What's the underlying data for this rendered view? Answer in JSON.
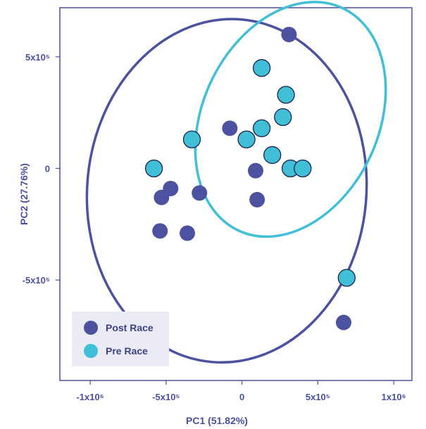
{
  "chart_data": {
    "type": "scatter",
    "title": "",
    "xlabel": "PC1 (51.82%)",
    "ylabel": "PC2 (27.76%)",
    "xlim": [
      -1200000,
      1120000
    ],
    "ylim": [
      -950000,
      720000
    ],
    "x_ticks": [
      {
        "value": -1000000,
        "label": "-1x10⁶"
      },
      {
        "value": -500000,
        "label": "-5x10⁵"
      },
      {
        "value": 0,
        "label": "0"
      },
      {
        "value": 500000,
        "label": "5x10⁵"
      },
      {
        "value": 1000000,
        "label": "1x10⁶"
      }
    ],
    "y_ticks": [
      {
        "value": 500000,
        "label": "5x10⁵"
      },
      {
        "value": 0,
        "label": "0"
      },
      {
        "value": -500000,
        "label": "-5x10⁵"
      }
    ],
    "legend_position": "bottom-left",
    "series": [
      {
        "name": "Post Race",
        "color": "#4c529f",
        "points": [
          [
            310000,
            600000
          ],
          [
            -80000,
            180000
          ],
          [
            90000,
            -10000
          ],
          [
            100000,
            -140000
          ],
          [
            -470000,
            -90000
          ],
          [
            -530000,
            -130000
          ],
          [
            -280000,
            -110000
          ],
          [
            -540000,
            -280000
          ],
          [
            -360000,
            -290000
          ],
          [
            670000,
            -690000
          ]
        ],
        "ellipse": {
          "cx": -100000,
          "cy": -100000,
          "rx": 920000,
          "ry": 770000,
          "rotation_deg": 5
        }
      },
      {
        "name": "Pre Race",
        "color": "#40bfd6",
        "points": [
          [
            130000,
            450000
          ],
          [
            290000,
            330000
          ],
          [
            270000,
            230000
          ],
          [
            130000,
            180000
          ],
          [
            30000,
            130000
          ],
          [
            -330000,
            130000
          ],
          [
            200000,
            60000
          ],
          [
            320000,
            0
          ],
          [
            400000,
            0
          ],
          [
            -580000,
            0
          ],
          [
            690000,
            -490000
          ]
        ],
        "ellipse": {
          "cx": 320000,
          "cy": 220000,
          "rx": 580000,
          "ry": 550000,
          "rotation_deg": 25
        }
      }
    ]
  }
}
